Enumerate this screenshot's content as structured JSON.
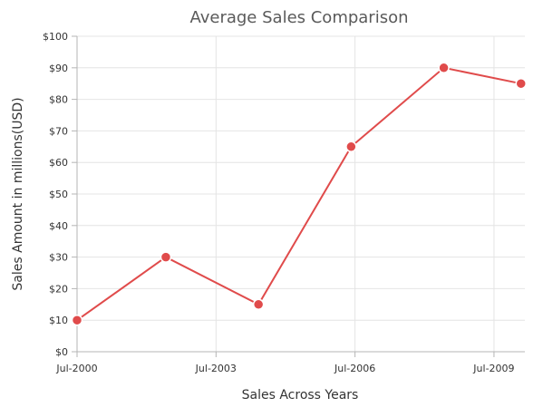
{
  "chart_data": {
    "type": "line",
    "title": "Average Sales Comparison",
    "xlabel": "Sales Across Years",
    "ylabel": "Sales Amount in millions(USD)",
    "x_type": "date",
    "xlim": [
      "2000-07",
      "2010-03"
    ],
    "x_ticks": [
      {
        "value": "2000-07",
        "label": "Jul-2000"
      },
      {
        "value": "2003-07",
        "label": "Jul-2003"
      },
      {
        "value": "2006-07",
        "label": "Jul-2006"
      },
      {
        "value": "2009-07",
        "label": "Jul-2009"
      }
    ],
    "ylim": [
      0,
      100
    ],
    "y_ticks": [
      {
        "value": 0,
        "label": "$0"
      },
      {
        "value": 10,
        "label": "$10"
      },
      {
        "value": 20,
        "label": "$20"
      },
      {
        "value": 30,
        "label": "$30"
      },
      {
        "value": 40,
        "label": "$40"
      },
      {
        "value": 50,
        "label": "$50"
      },
      {
        "value": 60,
        "label": "$60"
      },
      {
        "value": 70,
        "label": "$70"
      },
      {
        "value": 80,
        "label": "$80"
      },
      {
        "value": 90,
        "label": "$90"
      },
      {
        "value": 100,
        "label": "$100"
      }
    ],
    "grid": true,
    "series": [
      {
        "color": "#e04b4b",
        "points": [
          {
            "x": "2000-07",
            "y": 10
          },
          {
            "x": "2002-06",
            "y": 30
          },
          {
            "x": "2004-06",
            "y": 15
          },
          {
            "x": "2006-06",
            "y": 65
          },
          {
            "x": "2008-06",
            "y": 90
          },
          {
            "x": "2010-02",
            "y": 85
          }
        ]
      }
    ]
  }
}
